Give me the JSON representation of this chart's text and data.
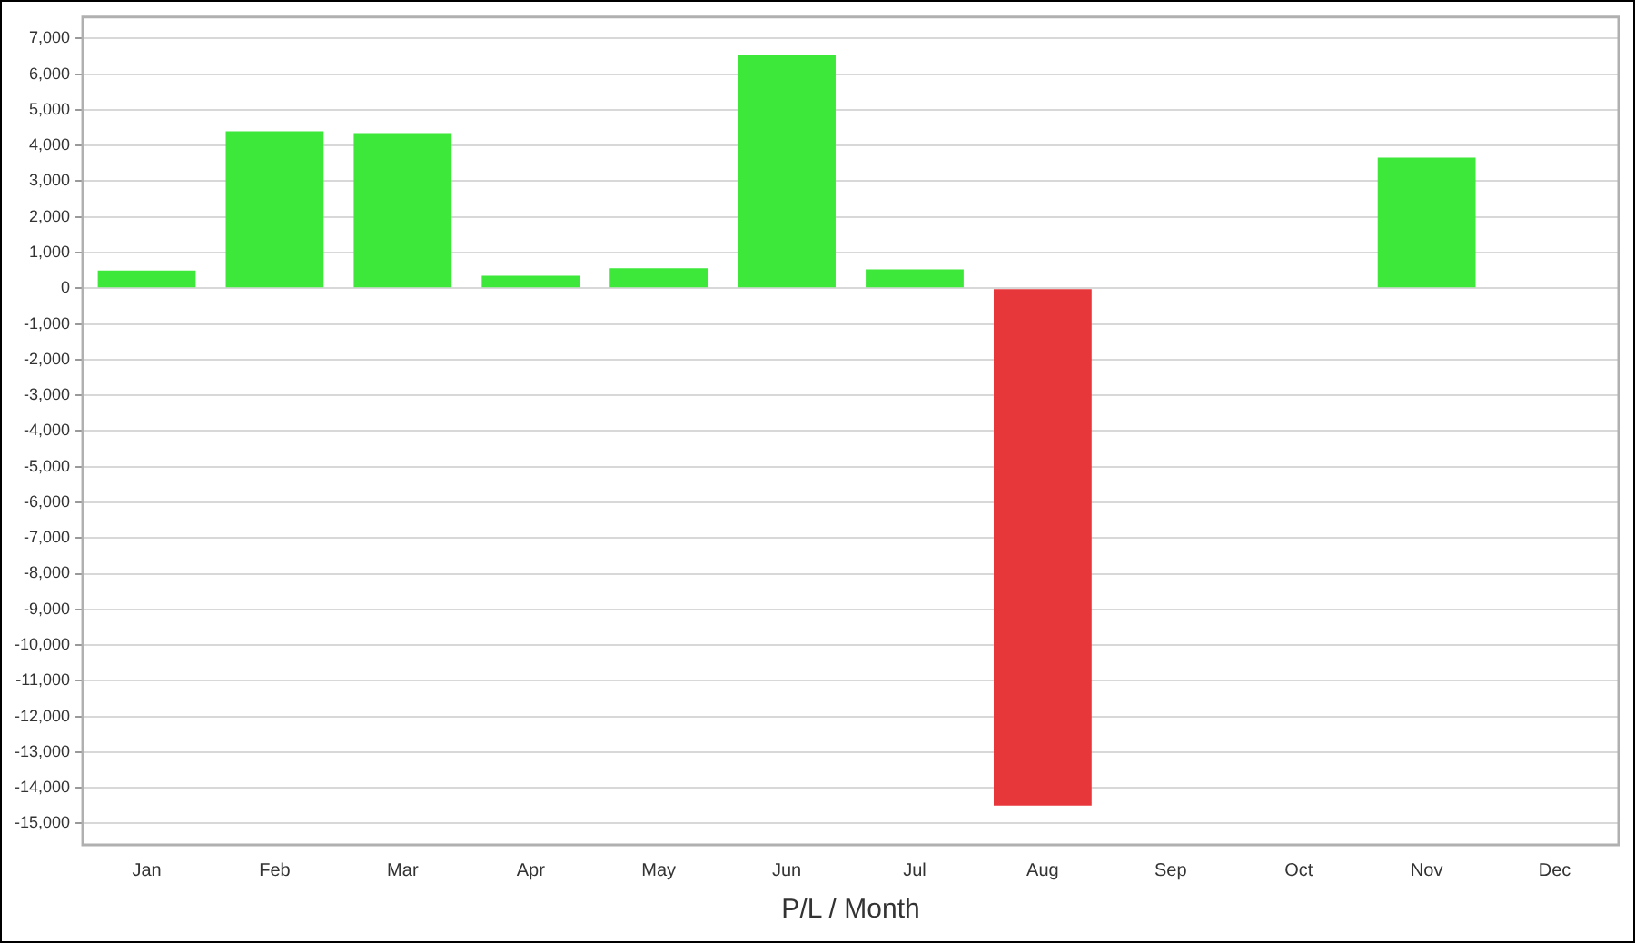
{
  "chart_data": {
    "type": "bar",
    "xlabel": "P/L / Month",
    "categories": [
      "Jan",
      "Feb",
      "Mar",
      "Apr",
      "May",
      "Jun",
      "Jul",
      "Aug",
      "Sep",
      "Oct",
      "Nov",
      "Dec"
    ],
    "values": [
      500,
      4400,
      4350,
      350,
      560,
      6550,
      530,
      -14500,
      null,
      null,
      3660,
      null
    ],
    "colors": [
      "#3de83a",
      "#3de83a",
      "#3de83a",
      "#3de83a",
      "#3de83a",
      "#3de83a",
      "#3de83a",
      "#e8373b",
      "#3de83a",
      "#3de83a",
      "#3de83a",
      "#3de83a"
    ],
    "ylim": [
      -15600,
      7600
    ],
    "yticks": [
      {
        "value": -15000,
        "label": "-15,000"
      },
      {
        "value": -14000,
        "label": "-14,000"
      },
      {
        "value": -13000,
        "label": "-13,000"
      },
      {
        "value": -12000,
        "label": "-12,000"
      },
      {
        "value": -11000,
        "label": "-11,000"
      },
      {
        "value": -10000,
        "label": "-10,000"
      },
      {
        "value": -9000,
        "label": "-9,000"
      },
      {
        "value": -8000,
        "label": "-8,000"
      },
      {
        "value": -7000,
        "label": "-7,000"
      },
      {
        "value": -6000,
        "label": "-6,000"
      },
      {
        "value": -5000,
        "label": "-5,000"
      },
      {
        "value": -4000,
        "label": "-4,000"
      },
      {
        "value": -3000,
        "label": "-3,000"
      },
      {
        "value": -2000,
        "label": "-2,000"
      },
      {
        "value": -1000,
        "label": "-1,000"
      },
      0,
      {
        "value": 1000,
        "label": "1,000"
      },
      {
        "value": 2000,
        "label": "2,000"
      },
      {
        "value": 3000,
        "label": "3,000"
      },
      {
        "value": 4000,
        "label": "4,000"
      },
      {
        "value": 5000,
        "label": "5,000"
      },
      {
        "value": 6000,
        "label": "6,000"
      },
      {
        "value": 7000,
        "label": "7,000"
      }
    ],
    "grid": "y",
    "legend": false
  }
}
